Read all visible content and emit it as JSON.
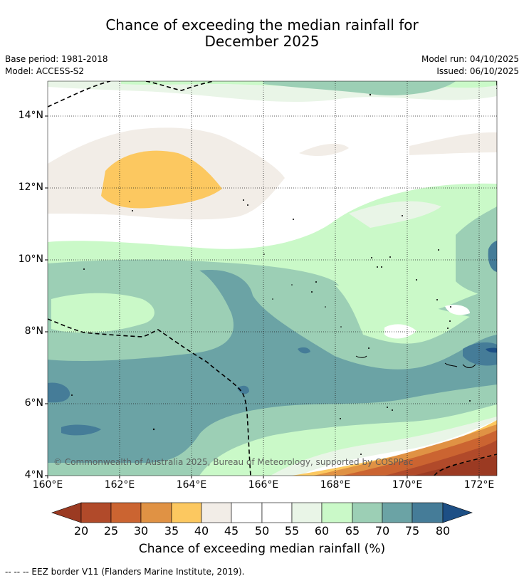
{
  "header": {
    "title_line1": "Chance of exceeding the median rainfall for",
    "title_line2": "December 2025",
    "base_period": "Base period: 1981-2018",
    "model": "Model: ACCESS-S2",
    "model_run": "Model run: 04/10/2025",
    "issued": "Issued: 06/10/2025"
  },
  "map": {
    "lat_labels": [
      "14°N",
      "12°N",
      "10°N",
      "8°N",
      "6°N",
      "4°N"
    ],
    "lon_labels": [
      "160°E",
      "162°E",
      "164°E",
      "166°E",
      "168°E",
      "170°E",
      "172°E"
    ],
    "copyright": "© Commonwealth of Australia 2025, Bureau of Meteorology, supported by COSPPac"
  },
  "colorbar": {
    "title": "Chance of exceeding median rainfall (%)",
    "ticks": [
      "20",
      "25",
      "30",
      "35",
      "40",
      "45",
      "50",
      "55",
      "60",
      "65",
      "70",
      "75",
      "80"
    ],
    "colors": {
      "under20": "#9b3a22",
      "c20_25": "#b14a2a",
      "c25_30": "#cb6431",
      "c30_35": "#e09244",
      "c35_40": "#fcc860",
      "c40_45": "#f2ede7",
      "c45_55": "#ffffff",
      "c55_60": "#e9f5e7",
      "c60_65": "#caf9c8",
      "c65_70": "#9ccfb5",
      "c70_75": "#6ba3a5",
      "c75_80": "#457c98",
      "over80": "#1d4f85"
    }
  },
  "footnote": "-- -- -- EEZ border V11 (Flanders Marine Institute, 2019)."
}
